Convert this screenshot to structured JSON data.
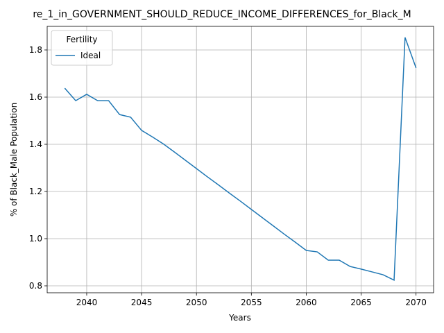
{
  "chart_data": {
    "type": "line",
    "title": "re_1_in_GOVERNMENT_SHOULD_REDUCE_INCOME_DIFFERENCES_for_Black_M",
    "x_label": "Years",
    "y_label": "% of Black_Male Population",
    "x": [
      2038,
      2039,
      2040,
      2041,
      2042,
      2043,
      2044,
      2045,
      2046,
      2047,
      2048,
      2049,
      2050,
      2051,
      2052,
      2053,
      2054,
      2055,
      2056,
      2057,
      2058,
      2059,
      2060,
      2061,
      2062,
      2063,
      2064,
      2065,
      2066,
      2067,
      2068,
      2069,
      2070
    ],
    "series": [
      {
        "name": "Ideal",
        "color": "#1f77b4",
        "values": [
          1.638,
          1.585,
          1.612,
          1.585,
          1.585,
          1.526,
          1.515,
          1.459,
          1.431,
          1.401,
          1.367,
          1.332,
          1.297,
          1.262,
          1.228,
          1.193,
          1.159,
          1.124,
          1.089,
          1.054,
          1.019,
          0.985,
          0.95,
          0.944,
          0.909,
          0.909,
          0.882,
          0.871,
          0.859,
          0.847,
          0.824,
          1.853,
          1.724
        ]
      }
    ],
    "legend_title": "Fertility",
    "legend": "upper left",
    "xlim": [
      2036.4,
      2071.6
    ],
    "xticks": [
      2040,
      2045,
      2050,
      2055,
      2060,
      2065,
      2070
    ],
    "ylim": [
      0.7706,
      1.9
    ],
    "yticks": [
      0.8,
      {
        "value": 1,
        "label": "1.0"
      },
      1.2,
      1.4,
      1.6,
      1.8
    ],
    "grid": true
  }
}
